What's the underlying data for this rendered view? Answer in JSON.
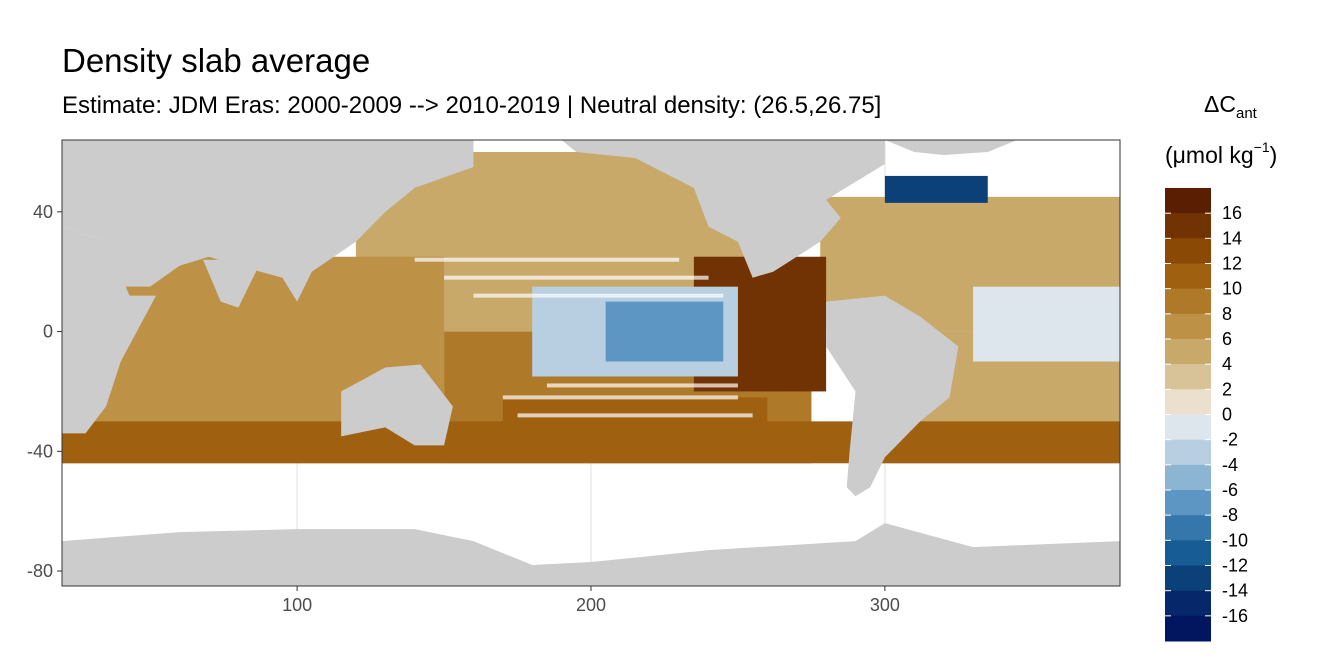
{
  "chart_data": {
    "type": "heatmap",
    "title": "Density slab average",
    "subtitle": "Estimate: JDM Eras: 2000-2009 --> 2010-2019 | Neutral density: (26.5,26.75]",
    "xlim": [
      20,
      380
    ],
    "ylim": [
      -85,
      64
    ],
    "x_ticks": [
      100,
      200,
      300
    ],
    "y_ticks": [
      40,
      0,
      -40,
      -80
    ],
    "x_tick_labels": [
      "100",
      "200",
      "300"
    ],
    "y_tick_labels": [
      "40",
      "0",
      "-40",
      "-80"
    ],
    "grid": true,
    "legend": {
      "position": "right",
      "title_main": "ΔC",
      "title_sub": "ant",
      "title_unit_prefix": "(μmol kg",
      "title_unit_sup": "−1",
      "title_unit_suffix": ")",
      "labels": [
        "16",
        "14",
        "12",
        "10",
        "8",
        "6",
        "4",
        "2",
        "0",
        "-2",
        "-4",
        "-6",
        "-8",
        "-10",
        "-12",
        "-14",
        "-16"
      ],
      "colors": [
        "#5a1e03",
        "#723304",
        "#8a4a06",
        "#9f6010",
        "#ae7a2a",
        "#bd9146",
        "#c9a96a",
        "#d8c399",
        "#ebe0cd",
        "#dde6ec",
        "#b7cfe0",
        "#8cb5d3",
        "#5d96c2",
        "#3677ab",
        "#175c94",
        "#0b4079",
        "#06276a",
        "#021660"
      ]
    },
    "colors": {
      "land": "#cccccc",
      "nodata": "#ffffff",
      "grid": "#ebebeb",
      "panel_border": "#333333"
    },
    "fields": [
      {
        "region": "equatorial-pacific-tongue",
        "value": -6
      },
      {
        "region": "eastern-equatorial-pacific-core",
        "value": -10
      },
      {
        "region": "north-atlantic-subpolar",
        "value": -16
      },
      {
        "region": "eastern-pacific-margin",
        "value": 14
      },
      {
        "region": "southern-ocean-band",
        "value": 12
      },
      {
        "region": "south-pacific-gyre",
        "value": 8
      },
      {
        "region": "north-pacific-gyre",
        "value": 5
      },
      {
        "region": "indian-ocean",
        "value": 6
      },
      {
        "region": "south-atlantic",
        "value": 6
      },
      {
        "region": "tropical-atlantic",
        "value": -1
      }
    ]
  }
}
